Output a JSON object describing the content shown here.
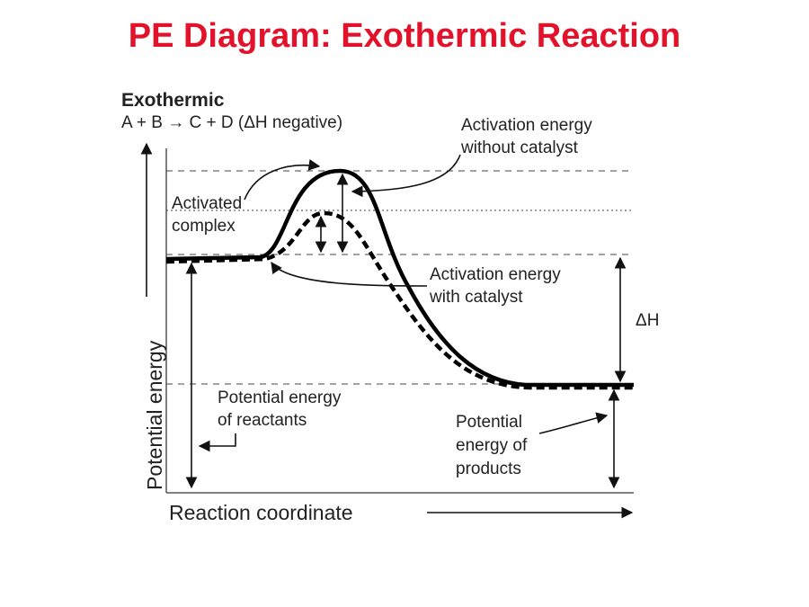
{
  "title": "PE Diagram: Exothermic Reaction",
  "diagram": {
    "heading": "Exothermic",
    "equation": "A + B → C + D (ΔH negative)",
    "labels": {
      "activation_without_catalyst": {
        "lines": [
          "Activation energy",
          "without catalyst"
        ]
      },
      "activated_complex": {
        "lines": [
          "Activated",
          "complex"
        ]
      },
      "activation_with_catalyst": {
        "lines": [
          "Activation energy",
          "with catalyst"
        ]
      },
      "delta_h": "ΔH",
      "reactants": {
        "lines": [
          "Potential energy",
          "of reactants"
        ]
      },
      "products": {
        "lines": [
          "Potential",
          "energy of",
          "products"
        ]
      }
    },
    "y_axis_label": "Potential energy",
    "x_axis_label": "Reaction coordinate"
  }
}
